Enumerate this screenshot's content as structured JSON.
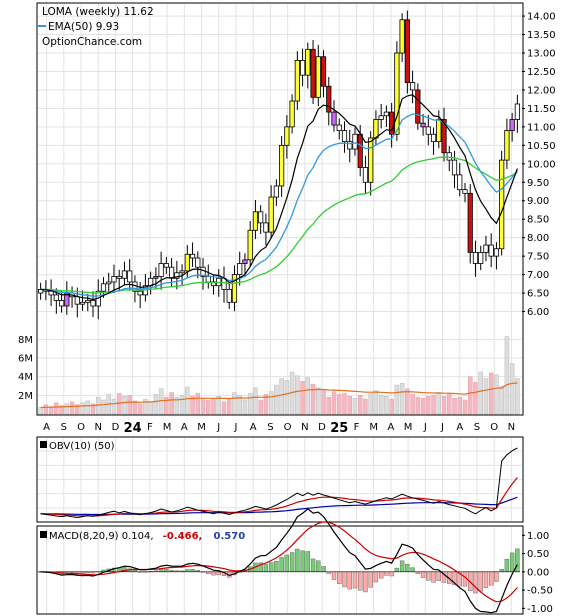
{
  "chart_data": {
    "type": "candlestick",
    "header": {
      "line1": "LOMA (weekly) 11.62",
      "line2": "EMA(50) 9.93",
      "line3": "OptionChance.com"
    },
    "colors": {
      "up_fill": "#ffff33",
      "down_fill": "#cc1111",
      "purple_fill": "#cc66ff",
      "wick": "#000000",
      "ema20": "#3399dd",
      "ema50": "#33cc33",
      "ema10": "#000000",
      "vol_up": "#dddddd",
      "vol_down": "#f4b8c0",
      "vol_avg": "#e07020",
      "obv": "#000000",
      "obv_signal": "#cc0000",
      "obv_long": "#0000aa",
      "macd": "#000000",
      "macd_signal": "#cc0000",
      "hist_up": "#77cc77",
      "hist_down": "#ffaaaa"
    },
    "price_axis": {
      "min": 5.5,
      "max": 14.3,
      "ticks": [
        "6.00",
        "6.50",
        "7.00",
        "7.50",
        "8.00",
        "8.50",
        "9.00",
        "9.50",
        "10.00",
        "10.50",
        "11.00",
        "11.50",
        "12.00",
        "12.50",
        "13.00",
        "13.50",
        "14.00"
      ]
    },
    "volume_axis": {
      "max": 9,
      "ticks": [
        "2M",
        "4M",
        "6M",
        "8M"
      ]
    },
    "months": [
      "A",
      "S",
      "O",
      "N",
      "D",
      "24",
      "F",
      "M",
      "A",
      "M",
      "J",
      "J",
      "A",
      "S",
      "O",
      "N",
      "D",
      "25",
      "F",
      "M",
      "A",
      "M",
      "J",
      "J",
      "A",
      "S",
      "O",
      "N"
    ],
    "obv_panel": {
      "label": "OBV(10) (50)"
    },
    "macd_panel": {
      "label": "MACD(8,20,9) 0.104,",
      "signal_label": "-0.466,",
      "hist_label": "0.570",
      "min": -1.1,
      "max": 1.2,
      "ticks": [
        "1.00",
        "0.50",
        "0.00",
        "-0.50",
        "-1.00"
      ]
    },
    "close": [
      6.6,
      6.55,
      6.45,
      6.3,
      6.15,
      6.5,
      6.4,
      6.2,
      6.25,
      6.3,
      6.15,
      6.55,
      6.75,
      6.8,
      6.95,
      6.9,
      7.1,
      6.8,
      6.55,
      6.45,
      6.7,
      6.9,
      6.95,
      7.3,
      7.2,
      6.9,
      7.05,
      7.1,
      7.55,
      7.45,
      7.2,
      6.95,
      6.8,
      6.7,
      6.9,
      6.6,
      6.25,
      7.0,
      7.3,
      7.4,
      8.2,
      8.7,
      8.4,
      8.15,
      9.1,
      9.4,
      10.5,
      11.0,
      11.7,
      12.8,
      12.4,
      13.1,
      11.8,
      12.9,
      12.1,
      11.4,
      11.05,
      10.9,
      10.6,
      10.4,
      10.8,
      9.9,
      9.5,
      10.7,
      11.2,
      11.3,
      11.4,
      10.8,
      13.0,
      13.9,
      12.2,
      12.0,
      11.1,
      11.0,
      10.8,
      10.6,
      11.2,
      10.3,
      10.1,
      9.7,
      9.3,
      9.2,
      7.6,
      7.3,
      7.6,
      7.8,
      7.5,
      7.7,
      10.1,
      10.9,
      11.2,
      11.62
    ],
    "volume": [
      0.7,
      1.0,
      0.8,
      1.2,
      0.9,
      1.1,
      1.3,
      1.0,
      1.2,
      1.4,
      1.1,
      1.8,
      1.5,
      2.1,
      1.6,
      2.2,
      1.9,
      2.0,
      1.4,
      1.1,
      1.6,
      1.3,
      2.1,
      2.7,
      1.8,
      2.3,
      1.8,
      2.0,
      2.9,
      1.9,
      2.2,
      1.7,
      1.5,
      1.6,
      1.9,
      1.3,
      1.6,
      2.3,
      2.0,
      1.5,
      2.2,
      2.8,
      1.5,
      2.1,
      2.4,
      3.1,
      3.8,
      3.6,
      4.5,
      4.1,
      3.5,
      3.9,
      3.2,
      2.8,
      2.5,
      1.8,
      2.4,
      2.1,
      2.2,
      1.9,
      1.7,
      2.0,
      1.6,
      2.2,
      2.5,
      2.0,
      1.9,
      1.6,
      3.1,
      3.3,
      2.7,
      2.1,
      1.8,
      1.7,
      1.9,
      2.0,
      2.3,
      1.9,
      2.2,
      1.7,
      1.8,
      1.5,
      4.0,
      3.4,
      4.5,
      3.8,
      4.4,
      4.2,
      3.0,
      8.3,
      5.4,
      3.8
    ]
  }
}
